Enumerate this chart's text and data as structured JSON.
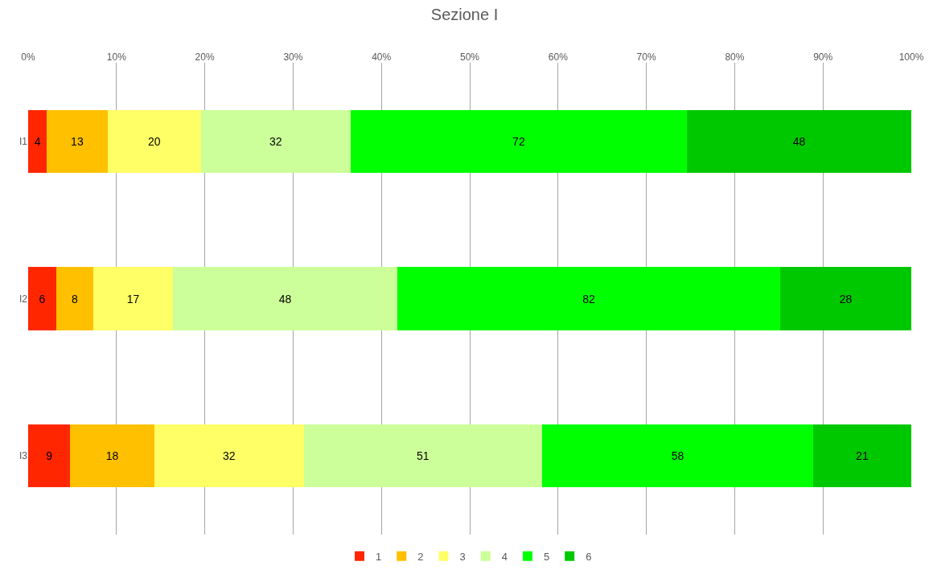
{
  "chart_data": {
    "type": "bar",
    "title": "Sezione I",
    "orientation": "horizontal",
    "stacked": true,
    "categories": [
      "I1",
      "I2",
      "I3"
    ],
    "series": [
      {
        "name": "1",
        "color": "#ff2600",
        "values": [
          4,
          6,
          9
        ]
      },
      {
        "name": "2",
        "color": "#ffc000",
        "values": [
          13,
          8,
          18
        ]
      },
      {
        "name": "3",
        "color": "#ffff66",
        "values": [
          20,
          17,
          32
        ]
      },
      {
        "name": "4",
        "color": "#ccff99",
        "values": [
          32,
          48,
          51
        ]
      },
      {
        "name": "5",
        "color": "#00ff00",
        "values": [
          72,
          82,
          58
        ]
      },
      {
        "name": "6",
        "color": "#00c800",
        "values": [
          48,
          28,
          21
        ]
      }
    ],
    "xlim": [
      0,
      189
    ],
    "x2lim": [
      0,
      100
    ],
    "x2ticks": [
      {
        "value": 0,
        "label": "0%"
      },
      {
        "value": 10,
        "label": "10%"
      },
      {
        "value": 20,
        "label": "20%"
      },
      {
        "value": 30,
        "label": "30%"
      },
      {
        "value": 40,
        "label": "40%"
      },
      {
        "value": 50,
        "label": "50%"
      },
      {
        "value": 60,
        "label": "60%"
      },
      {
        "value": 70,
        "label": "70%"
      },
      {
        "value": 80,
        "label": "80%"
      },
      {
        "value": 90,
        "label": "90%"
      },
      {
        "value": 100,
        "label": "100%"
      }
    ],
    "data_labels": true,
    "grid": "x",
    "legend": "bottom"
  }
}
